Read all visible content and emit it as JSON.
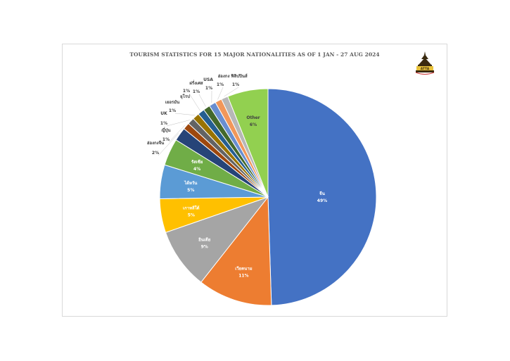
{
  "chart_data": {
    "type": "pie",
    "title": "TOURISM STATISTICS FOR 15 MAJOR NATIONALITIES AS OF 1 JAN - 27 AUG 2024",
    "slices": [
      {
        "label": "จีน",
        "value": 49,
        "pct": "49%",
        "color": "#4472c4",
        "label_inside": true
      },
      {
        "label": "เวียดนาม",
        "value": 11,
        "pct": "11%",
        "color": "#ed7d31",
        "label_inside": true
      },
      {
        "label": "อินเดีย",
        "value": 9,
        "pct": "9%",
        "color": "#a5a5a5",
        "label_inside": true
      },
      {
        "label": "เกาหลีใต้",
        "value": 5,
        "pct": "5%",
        "color": "#ffc000",
        "label_inside": true
      },
      {
        "label": "ไต้หวัน",
        "value": 5,
        "pct": "5%",
        "color": "#5b9bd5",
        "label_inside": true
      },
      {
        "label": "รัสเซีย",
        "value": 4,
        "pct": "4%",
        "color": "#70ad47",
        "label_inside": true
      },
      {
        "label": "ฮ่องกงจีน",
        "value": 2,
        "pct": "2%",
        "color": "#264478",
        "label_inside": false
      },
      {
        "label": "ญี่ปุ่น",
        "value": 1,
        "pct": "1%",
        "color": "#9e480e",
        "label_inside": false
      },
      {
        "label": "UK",
        "value": 1,
        "pct": "1%",
        "color": "#636363",
        "label_inside": false
      },
      {
        "label": "เยอรมัน",
        "value": 1,
        "pct": "1%",
        "color": "#997300",
        "label_inside": false
      },
      {
        "label": "ยุโรป",
        "value": 1,
        "pct": "1%",
        "color": "#255e91",
        "label_inside": false
      },
      {
        "label": "ฝรั่งเศส",
        "value": 1,
        "pct": "1%",
        "color": "#43682b",
        "label_inside": false
      },
      {
        "label": "USA",
        "value": 1,
        "pct": "1%",
        "color": "#698ed0",
        "label_inside": false
      },
      {
        "label": "ฮ่องกง",
        "value": 1,
        "pct": "1%",
        "color": "#f1975a",
        "label_inside": false
      },
      {
        "label": "ฟิลิปปินส์",
        "value": 1,
        "pct": "1%",
        "color": "#b7b7b7",
        "label_inside": false
      },
      {
        "label": "Other",
        "value": 6,
        "pct": "6%",
        "color": "#92d050",
        "label_inside": true
      }
    ],
    "legend": "none"
  },
  "logo": {
    "text": "ATTA"
  }
}
